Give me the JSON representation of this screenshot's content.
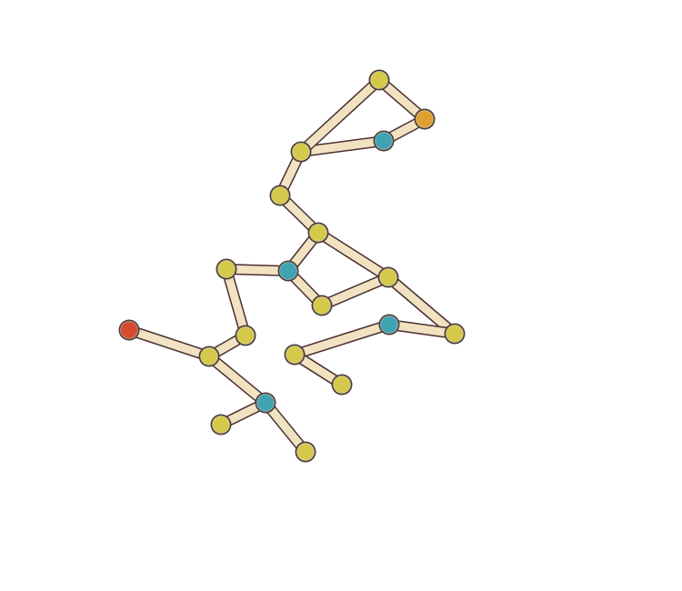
{
  "colors": {
    "background": "#ffffff",
    "bond_fill": "#f1e2c2",
    "bond_outline": "#4a2f2f",
    "atom_outline": "#4a3a36",
    "yellow": "#d4c94a",
    "teal": "#3fa3b2",
    "orange": "#e0a030",
    "red": "#d64a30"
  },
  "molecule": {
    "atoms": [
      {
        "id": "a1",
        "element": "yellow"
      },
      {
        "id": "a2",
        "element": "orange"
      },
      {
        "id": "a3",
        "element": "teal"
      },
      {
        "id": "a4",
        "element": "yellow"
      },
      {
        "id": "a5",
        "element": "yellow"
      },
      {
        "id": "a6",
        "element": "yellow"
      },
      {
        "id": "a7",
        "element": "yellow"
      },
      {
        "id": "a8",
        "element": "teal"
      },
      {
        "id": "a9",
        "element": "yellow"
      },
      {
        "id": "a10",
        "element": "yellow"
      },
      {
        "id": "a11",
        "element": "teal"
      },
      {
        "id": "a12",
        "element": "yellow"
      },
      {
        "id": "a13",
        "element": "yellow"
      },
      {
        "id": "a14",
        "element": "yellow"
      },
      {
        "id": "a15",
        "element": "yellow"
      },
      {
        "id": "a16",
        "element": "red"
      },
      {
        "id": "a17",
        "element": "yellow"
      },
      {
        "id": "a18",
        "element": "teal"
      },
      {
        "id": "a19",
        "element": "yellow"
      },
      {
        "id": "a20",
        "element": "yellow"
      }
    ],
    "bonds": [
      [
        "a1",
        "a2"
      ],
      [
        "a2",
        "a3"
      ],
      [
        "a3",
        "a4"
      ],
      [
        "a1",
        "a4"
      ],
      [
        "a4",
        "a5"
      ],
      [
        "a5",
        "a6"
      ],
      [
        "a6",
        "a8"
      ],
      [
        "a6",
        "a10"
      ],
      [
        "a8",
        "a7"
      ],
      [
        "a8",
        "a9"
      ],
      [
        "a9",
        "a10"
      ],
      [
        "a10",
        "a12"
      ],
      [
        "a12",
        "a11"
      ],
      [
        "a11",
        "a13"
      ],
      [
        "a13",
        "a14"
      ],
      [
        "a7",
        "a15"
      ],
      [
        "a15",
        "a17"
      ],
      [
        "a17",
        "a16"
      ],
      [
        "a17",
        "a18"
      ],
      [
        "a18",
        "a19"
      ],
      [
        "a18",
        "a20"
      ]
    ]
  }
}
